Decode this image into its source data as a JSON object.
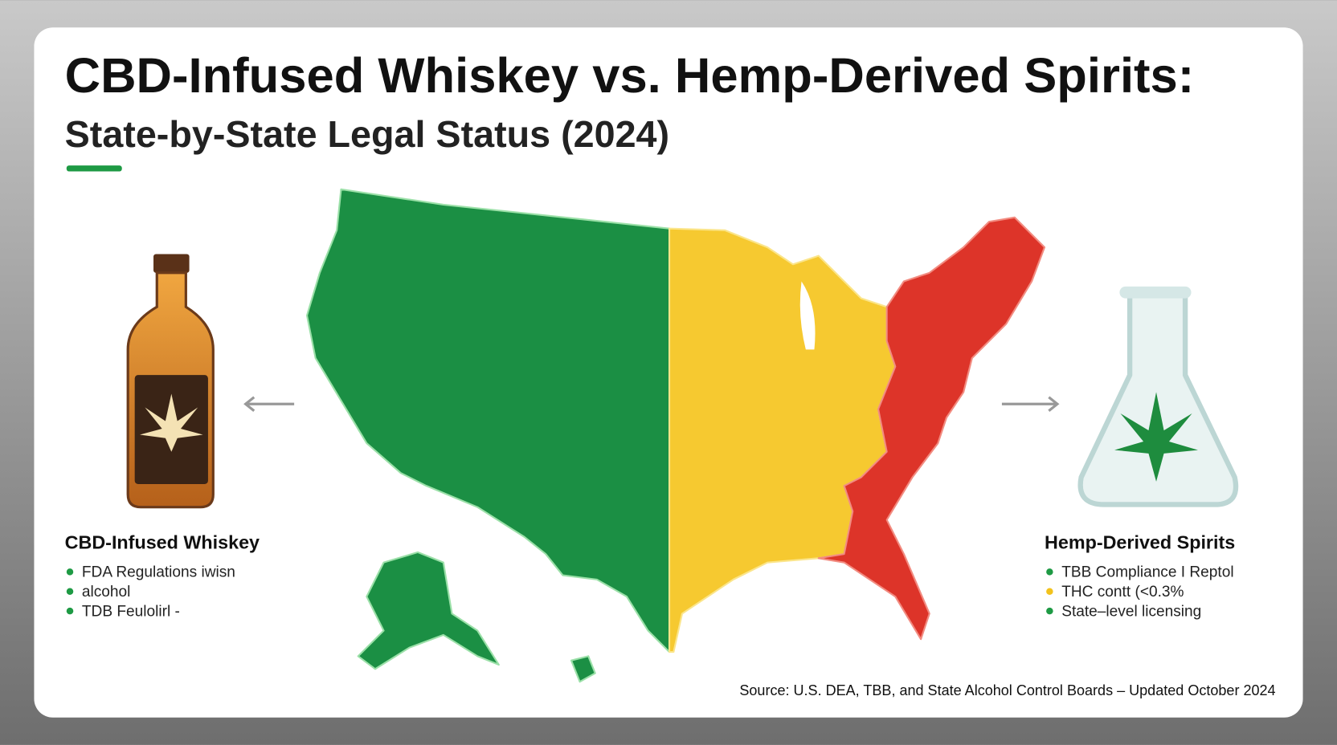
{
  "header": {
    "title": "CBD-Infused Whiskey vs. Hemp-Derived Spirits:",
    "subtitle": "State-by-State Legal Status (2024)"
  },
  "left_panel": {
    "heading": "CBD-Infused Whiskey",
    "bullets": [
      "FDA Regulations iwisn",
      "alcohol",
      "TDB Feulolirl -"
    ]
  },
  "right_panel": {
    "heading": "Hemp-Derived Spirits",
    "bullets": [
      "TBB Compliance I Reptol",
      "THC contt (<0.3%",
      "State–level licensing"
    ]
  },
  "footer": {
    "source": "Source: U.S. DEA, TBB, and State Alcohol Control Boards – Updated October 2024"
  }
}
